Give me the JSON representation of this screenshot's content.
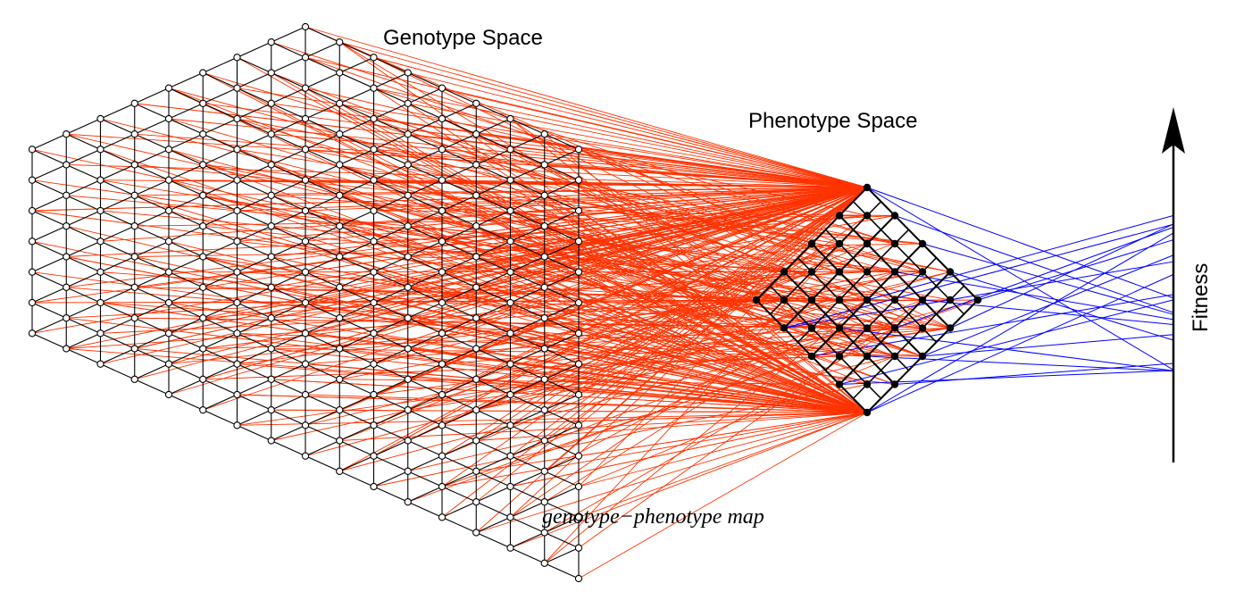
{
  "labels": {
    "genotype_space": "Genotype Space",
    "phenotype_space": "Phenotype Space",
    "map": "genotype−phenotype map",
    "fitness": "Fitness"
  },
  "colors": {
    "lattice": "#000000",
    "genotype_node_fill": "#ffffff",
    "phenotype_node_fill": "#000000",
    "gp_map_links": "#ff3300",
    "fitness_links": "#0000ff"
  },
  "structure": {
    "genotype_lattice": "triangular hexagon lattice, open nodes",
    "phenotype_lattice": "diamond lattice, filled nodes",
    "fitness_axis": "upward arrow"
  }
}
